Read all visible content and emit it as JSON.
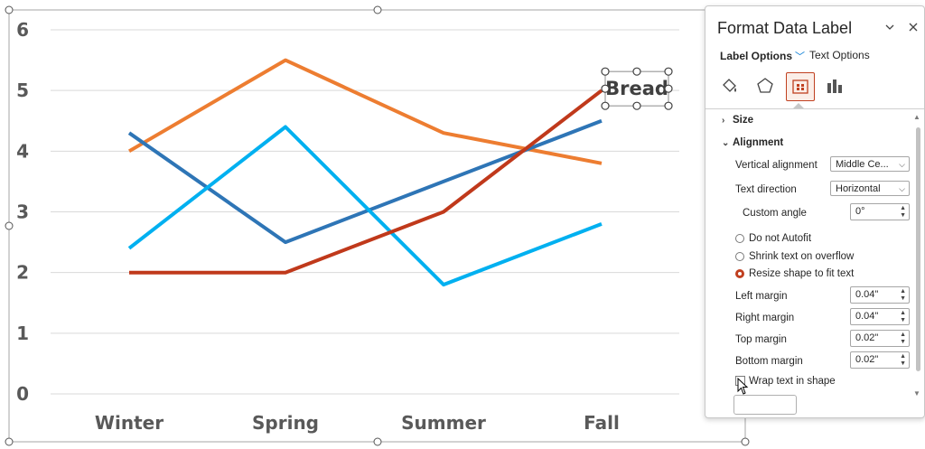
{
  "chart_data": {
    "type": "line",
    "categories": [
      "Winter",
      "Spring",
      "Summer",
      "Fall"
    ],
    "series": [
      {
        "color": "#ED7D31",
        "values": [
          4.0,
          5.5,
          4.3,
          3.8
        ]
      },
      {
        "color": "#2E75B6",
        "values": [
          4.3,
          2.5,
          3.5,
          4.5
        ]
      },
      {
        "color": "#00B0F0",
        "values": [
          2.4,
          4.4,
          1.8,
          2.8
        ]
      },
      {
        "color": "#C0391B",
        "values": [
          2.0,
          2.0,
          3.0,
          5.0
        ]
      }
    ],
    "y_ticks": [
      "0",
      "1",
      "2",
      "3",
      "4",
      "5",
      "6"
    ],
    "ylim": [
      0,
      6
    ],
    "grid": true,
    "data_label": {
      "text": "Bread",
      "series_index": 3,
      "point_index": 3,
      "selected": true
    }
  },
  "pane": {
    "title": "Format Data Label",
    "collapse_icon": "chevron-down-icon",
    "close_icon": "close-icon",
    "tab_label_options": "Label Options",
    "tab_text_options": "Text Options",
    "icons": [
      "fill-line-icon",
      "effects-pentagon-icon",
      "size-properties-icon",
      "label-options-bars-icon"
    ],
    "sections": {
      "size": "Size",
      "alignment": "Alignment"
    },
    "vertical_alignment": {
      "label": "Vertical alignment",
      "value": "Middle Ce..."
    },
    "text_direction": {
      "label": "Text direction",
      "value": "Horizontal"
    },
    "custom_angle": {
      "label": "Custom angle",
      "value": "0°"
    },
    "autofit": {
      "do_not": "Do not Autofit",
      "shrink": "Shrink text on overflow",
      "resize": "Resize shape to fit text",
      "selected": "resize"
    },
    "margins": {
      "left": {
        "label": "Left margin",
        "value": "0.04\""
      },
      "right": {
        "label": "Right margin",
        "value": "0.04\""
      },
      "top": {
        "label": "Top margin",
        "value": "0.02\""
      },
      "bottom": {
        "label": "Bottom margin",
        "value": "0.02\""
      }
    },
    "wrap_text": {
      "label": "Wrap text in shape",
      "checked": false
    }
  }
}
